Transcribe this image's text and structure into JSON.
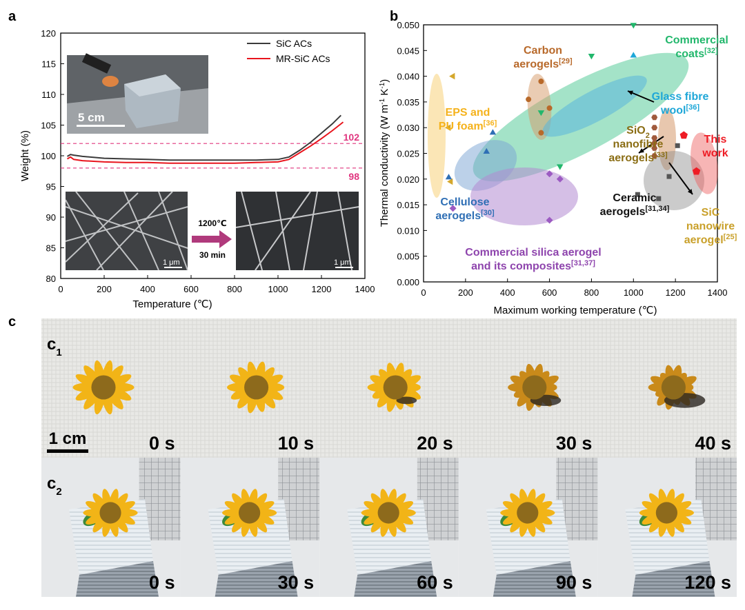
{
  "panel_labels": {
    "a": "a",
    "b": "b",
    "c": "c"
  },
  "chart_data": [
    {
      "type": "line",
      "panel": "a",
      "xlabel": "Temperature (℃)",
      "ylabel": "Weight (%)",
      "xlim": [
        0,
        1400
      ],
      "ylim": [
        80,
        120
      ],
      "xticks": [
        "0",
        "200",
        "400",
        "600",
        "800",
        "1000",
        "1200",
        "1400"
      ],
      "yticks": [
        "80",
        "85",
        "90",
        "95",
        "100",
        "105",
        "110",
        "115",
        "120"
      ],
      "series": [
        {
          "name": "SiC ACs",
          "color": "#3a3a3a",
          "x": [
            30,
            45,
            60,
            100,
            200,
            300,
            400,
            500,
            600,
            700,
            800,
            900,
            1000,
            1050,
            1100,
            1150,
            1200,
            1250,
            1290
          ],
          "y": [
            99.9,
            100.2,
            100.1,
            99.9,
            99.6,
            99.5,
            99.4,
            99.3,
            99.3,
            99.3,
            99.3,
            99.3,
            99.4,
            99.8,
            100.9,
            102.2,
            103.7,
            105.2,
            106.6
          ]
        },
        {
          "name": "MR-SiC ACs",
          "color": "#e8141c",
          "x": [
            30,
            45,
            60,
            100,
            200,
            300,
            400,
            500,
            600,
            700,
            800,
            900,
            1000,
            1050,
            1100,
            1150,
            1200,
            1250,
            1300
          ],
          "y": [
            99.5,
            99.8,
            99.4,
            99.2,
            99.0,
            98.9,
            98.9,
            98.8,
            98.8,
            98.8,
            98.8,
            98.9,
            99.0,
            99.4,
            100.5,
            101.6,
            102.8,
            104.1,
            105.5
          ]
        }
      ],
      "reference_lines": [
        {
          "y": 102,
          "label": "102",
          "color": "#e0357f"
        },
        {
          "y": 98,
          "label": "98",
          "color": "#e0357f"
        }
      ],
      "legend_position": "top-right",
      "annotations": {
        "scale_photo": "5 cm",
        "scale_sem_left": "1 μm",
        "scale_sem_right": "1 μm",
        "treatment_temp": "1200℃",
        "treatment_time": "30 min"
      }
    },
    {
      "type": "scatter",
      "panel": "b",
      "xlabel": "Maximum working temperature (℃)",
      "ylabel": "Thermal conductivity (W m⁻¹ K⁻¹)",
      "xlim": [
        0,
        1400
      ],
      "ylim": [
        0,
        0.05
      ],
      "xticks": [
        "0",
        "200",
        "400",
        "600",
        "800",
        "1000",
        "1200",
        "1400"
      ],
      "yticks": [
        "0.000",
        "0.005",
        "0.010",
        "0.015",
        "0.020",
        "0.025",
        "0.030",
        "0.035",
        "0.040",
        "0.045",
        "0.050"
      ],
      "series": [
        {
          "name": "EPS and PU foam",
          "marker": "tri-left",
          "color": "#d4a72c",
          "x": [
            140,
            120,
            130
          ],
          "y": [
            0.04,
            0.03,
            0.0195
          ]
        },
        {
          "name": "Carbon aerogels",
          "marker": "circle",
          "color": "#b8692a",
          "x": [
            560,
            500,
            600,
            560
          ],
          "y": [
            0.039,
            0.0355,
            0.0338,
            0.029
          ]
        },
        {
          "name": "Commercial coats",
          "marker": "tri-down",
          "color": "#22b76c",
          "x": [
            1000,
            800,
            560,
            650
          ],
          "y": [
            0.05,
            0.044,
            0.033,
            0.0225
          ]
        },
        {
          "name": "Glass fibre wool",
          "marker": "tri-up",
          "color": "#1ea7d8",
          "x": [
            1000
          ],
          "y": [
            0.044
          ]
        },
        {
          "name": "Cellulose aerogels",
          "marker": "tri-up",
          "color": "#2f6fb5",
          "x": [
            330,
            300,
            120
          ],
          "y": [
            0.029,
            0.0253,
            0.0203
          ]
        },
        {
          "name": "SiO2 nanofibre aerogels",
          "marker": "hexagon",
          "color": "#a05a3c",
          "x": [
            1100,
            1100,
            1100,
            1100,
            1100,
            1100
          ],
          "y": [
            0.032,
            0.03,
            0.028,
            0.027,
            0.026,
            0.0245
          ]
        },
        {
          "name": "Ceramic aerogels",
          "marker": "square",
          "color": "#555555",
          "x": [
            1020,
            1120,
            1170,
            1210
          ],
          "y": [
            0.017,
            0.0162,
            0.0205,
            0.0265
          ]
        },
        {
          "name": "Commercial silica aerogel and its composites",
          "marker": "diamond",
          "color": "#9c5bc2",
          "x": [
            600,
            650,
            600,
            140
          ],
          "y": [
            0.021,
            0.02,
            0.012,
            0.0143
          ]
        },
        {
          "name": "This work",
          "marker": "pentagon",
          "color": "#ee1c25",
          "x": [
            1240,
            1300
          ],
          "y": [
            0.0285,
            0.0215
          ]
        }
      ],
      "labels": [
        {
          "lines": [
            "Commercial",
            "coats"
          ],
          "sup": "[32]",
          "color": "#22b76c"
        },
        {
          "lines": [
            "Carbon",
            "aerogels"
          ],
          "sup": "[29]",
          "color": "#b8692a"
        },
        {
          "lines": [
            "EPS and",
            "PU foam"
          ],
          "sup": "[36]",
          "color": "#f5b21b"
        },
        {
          "lines": [
            "Glass fibre",
            "wool"
          ],
          "sup": "[36]",
          "color": "#1ea7d8"
        },
        {
          "lines": [
            "SiO",
            "nanofibre",
            "aerogels"
          ],
          "sub": "2",
          "sup": "[33]",
          "color": "#8a6d14"
        },
        {
          "lines": [
            "This",
            "work"
          ],
          "color": "#ee1c25"
        },
        {
          "lines": [
            "Cellulose",
            "aerogels"
          ],
          "sup": "[30]",
          "color": "#2f6fb5"
        },
        {
          "lines": [
            "Ceramic",
            "aerogels"
          ],
          "sup": "[31,34]",
          "color": "#111111"
        },
        {
          "lines": [
            "SiC",
            "nanowire",
            "aerogel"
          ],
          "sup": "[25]",
          "color": "#c9a02a"
        },
        {
          "lines": [
            "Commercial silica aerogel",
            "and its composites"
          ],
          "sup": "[31,37]",
          "color": "#8e44ad"
        }
      ]
    }
  ],
  "panel_c": {
    "rows": [
      {
        "label": "c",
        "sub": "1",
        "times": [
          "0 s",
          "10 s",
          "20 s",
          "30 s",
          "40 s"
        ],
        "scale_bar": "1 cm"
      },
      {
        "label": "c",
        "sub": "2",
        "times": [
          "0 s",
          "30 s",
          "60 s",
          "90 s",
          "120 s"
        ]
      }
    ]
  }
}
